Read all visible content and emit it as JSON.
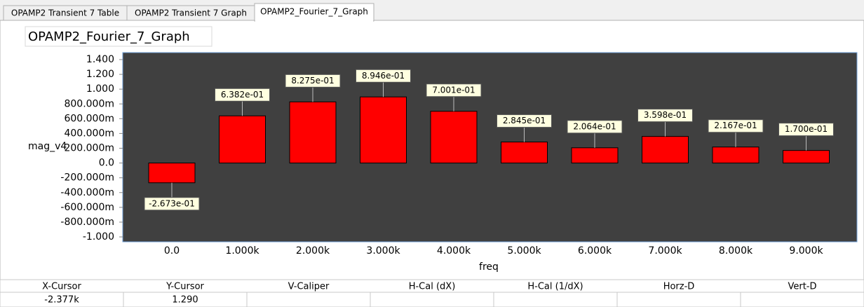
{
  "tabs": [
    "OPAMP2 Transient 7 Table",
    "OPAMP2 Transient 7 Graph",
    "OPAMP2_Fourier_7_Graph"
  ],
  "chart_data": {
    "type": "bar",
    "title": "OPAMP2_Fourier_7_Graph",
    "x_label": "freq",
    "y_label": "mag_v4",
    "categories": [
      "0.0",
      "1.000k",
      "2.000k",
      "3.000k",
      "4.000k",
      "5.000k",
      "6.000k",
      "7.000k",
      "8.000k",
      "9.000k"
    ],
    "values": [
      -0.2673,
      0.6382,
      0.8275,
      0.8946,
      0.7001,
      0.2845,
      0.2064,
      0.3598,
      0.2167,
      0.17
    ],
    "value_labels": [
      "-2.673e-01",
      "6.382e-01",
      "8.275e-01",
      "8.946e-01",
      "7.001e-01",
      "2.845e-01",
      "2.064e-01",
      "3.598e-01",
      "2.167e-01",
      "1.700e-01"
    ],
    "color": "#ff0000",
    "grid": false,
    "ylim": [
      -1,
      1.4
    ],
    "yticks": [
      {
        "value": 1.4,
        "label": "1.400"
      },
      {
        "value": 1.2,
        "label": "1.200"
      },
      {
        "value": 1.0,
        "label": "1.000"
      },
      {
        "value": 0.8,
        "label": "800.000m"
      },
      {
        "value": 0.6,
        "label": "600.000m"
      },
      {
        "value": 0.4,
        "label": "400.000m"
      },
      {
        "value": 0.2,
        "label": "200.000m"
      },
      {
        "value": 0,
        "label": "0.0"
      },
      {
        "value": -0.2,
        "label": "-200.000m"
      },
      {
        "value": -0.4,
        "label": "-400.000m"
      },
      {
        "value": -0.6,
        "label": "-600.000m"
      },
      {
        "value": -0.8,
        "label": "-800.000m"
      },
      {
        "value": -1,
        "label": "-1.000"
      }
    ]
  },
  "status": {
    "headers": [
      "X-Cursor",
      "Y-Cursor",
      "V-Caliper",
      "H-Cal (dX)",
      "H-Cal (1/dX)",
      "Horz-D",
      "Vert-D"
    ],
    "values": [
      "-2.377k",
      "1.290"
    ]
  }
}
